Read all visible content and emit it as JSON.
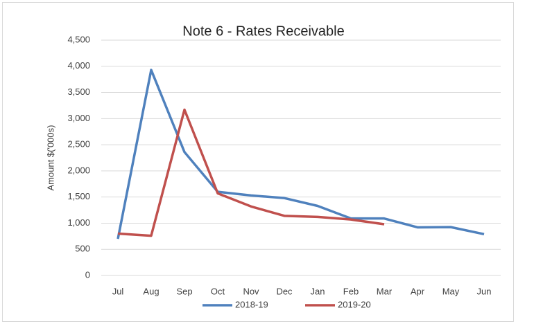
{
  "chart_data": {
    "type": "line",
    "title": "Note 6 - Rates Receivable",
    "y_label": "Amount $('000s)",
    "categories": [
      "Jul",
      "Aug",
      "Sep",
      "Oct",
      "Nov",
      "Dec",
      "Jan",
      "Feb",
      "Mar",
      "Apr",
      "May",
      "Jun"
    ],
    "series": [
      {
        "name": "2018-19",
        "color": "#4f81bd",
        "values": [
          700,
          3930,
          2360,
          1600,
          1530,
          1480,
          1330,
          1090,
          1090,
          920,
          925,
          790
        ]
      },
      {
        "name": "2019-20",
        "color": "#c0504d",
        "values": [
          800,
          760,
          3170,
          1570,
          1320,
          1140,
          1120,
          1070,
          980,
          null,
          null,
          null
        ]
      }
    ],
    "ylim": [
      0,
      4500
    ],
    "yticks": [
      0,
      500,
      {
        "value": 1000,
        "label": "1,000"
      },
      {
        "value": 1500,
        "label": "1,500"
      },
      {
        "value": 2000,
        "label": "2,000"
      },
      {
        "value": 2500,
        "label": "2,500"
      },
      {
        "value": 3000,
        "label": "3,000"
      },
      {
        "value": 3500,
        "label": "3,500"
      },
      {
        "value": 4000,
        "label": "4,000"
      },
      {
        "value": 4500,
        "label": "4,500"
      }
    ],
    "grid": true,
    "legend": "bottom"
  }
}
